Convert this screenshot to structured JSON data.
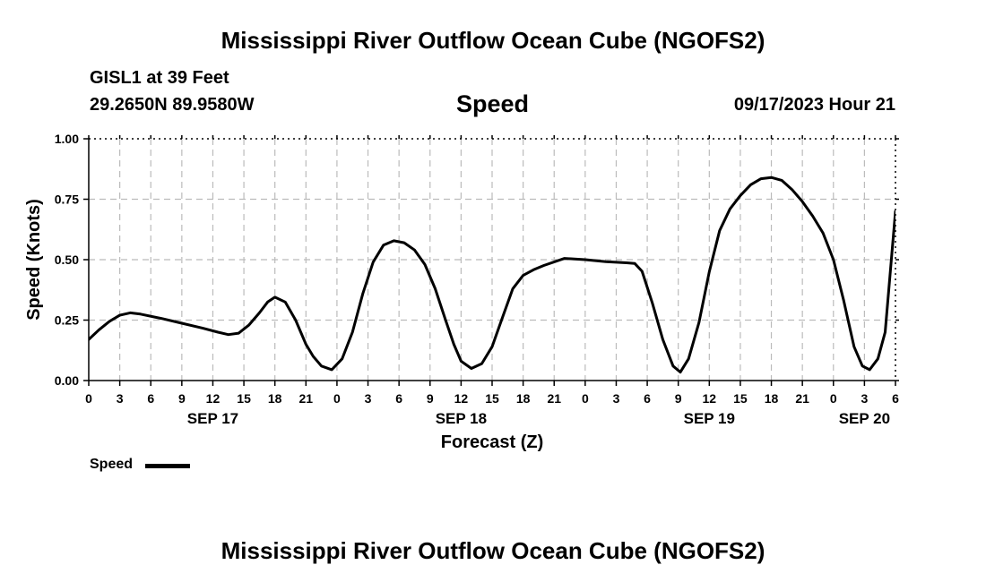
{
  "header": {
    "title_top": "Mississippi River Outflow Ocean Cube (NGOFS2)",
    "station": "GISL1 at 39 Feet",
    "coords": "29.2650N  89.9580W",
    "chart_title": "Speed",
    "datetime": "09/17/2023 Hour 21",
    "title_bottom": "Mississippi River Outflow Ocean Cube (NGOFS2)"
  },
  "legend": {
    "label": "Speed"
  },
  "chart_data": {
    "type": "line",
    "title": "Speed",
    "xlabel": "Forecast (Z)",
    "ylabel": "Speed (Knots)",
    "ylim": [
      0,
      1
    ],
    "xlim": [
      0,
      78
    ],
    "grid": true,
    "y_ticks": [
      "0.00",
      "0.25",
      "0.50",
      "0.75",
      "1.00"
    ],
    "x_ticks": [
      {
        "h": 0,
        "label": "0"
      },
      {
        "h": 3,
        "label": "3"
      },
      {
        "h": 6,
        "label": "6"
      },
      {
        "h": 9,
        "label": "9"
      },
      {
        "h": 12,
        "label": "12"
      },
      {
        "h": 15,
        "label": "15"
      },
      {
        "h": 18,
        "label": "18"
      },
      {
        "h": 21,
        "label": "21"
      },
      {
        "h": 24,
        "label": "0"
      },
      {
        "h": 27,
        "label": "3"
      },
      {
        "h": 30,
        "label": "6"
      },
      {
        "h": 33,
        "label": "9"
      },
      {
        "h": 36,
        "label": "12"
      },
      {
        "h": 39,
        "label": "15"
      },
      {
        "h": 42,
        "label": "18"
      },
      {
        "h": 45,
        "label": "21"
      },
      {
        "h": 48,
        "label": "0"
      },
      {
        "h": 51,
        "label": "3"
      },
      {
        "h": 54,
        "label": "6"
      },
      {
        "h": 57,
        "label": "9"
      },
      {
        "h": 60,
        "label": "12"
      },
      {
        "h": 63,
        "label": "15"
      },
      {
        "h": 66,
        "label": "18"
      },
      {
        "h": 69,
        "label": "21"
      },
      {
        "h": 72,
        "label": "0"
      },
      {
        "h": 75,
        "label": "3"
      },
      {
        "h": 78,
        "label": "6"
      }
    ],
    "date_labels": [
      {
        "h": 12,
        "label": "SEP 17"
      },
      {
        "h": 36,
        "label": "SEP 18"
      },
      {
        "h": 60,
        "label": "SEP 19"
      },
      {
        "h": 75,
        "label": "SEP 20"
      }
    ],
    "series": [
      {
        "name": "Speed",
        "x": [
          0,
          1,
          2,
          3,
          4,
          5,
          7,
          9,
          11,
          12.5,
          13.5,
          14.5,
          15.5,
          16.5,
          17.3,
          18,
          19,
          20,
          21,
          21.7,
          22.5,
          23.5,
          24.5,
          25.5,
          26.5,
          27.5,
          28.5,
          29.5,
          30.5,
          31.5,
          32.5,
          33.5,
          34.5,
          35.3,
          36,
          37,
          38,
          39,
          40,
          41,
          42,
          43,
          44,
          46,
          48,
          50,
          52,
          52.8,
          53.5,
          54.5,
          55.5,
          56.5,
          57.2,
          58,
          59,
          60,
          61,
          62,
          63,
          64,
          65,
          66,
          67,
          68,
          69,
          70,
          71,
          72,
          73,
          74,
          74.8,
          75.5,
          76.3,
          77,
          78
        ],
        "values": [
          0.17,
          0.21,
          0.245,
          0.27,
          0.28,
          0.275,
          0.257,
          0.237,
          0.217,
          0.2,
          0.19,
          0.196,
          0.23,
          0.28,
          0.325,
          0.345,
          0.325,
          0.25,
          0.15,
          0.1,
          0.06,
          0.045,
          0.09,
          0.2,
          0.36,
          0.49,
          0.56,
          0.578,
          0.57,
          0.54,
          0.48,
          0.38,
          0.25,
          0.15,
          0.08,
          0.05,
          0.07,
          0.14,
          0.26,
          0.38,
          0.435,
          0.458,
          0.476,
          0.505,
          0.5,
          0.492,
          0.487,
          0.484,
          0.452,
          0.32,
          0.17,
          0.06,
          0.035,
          0.09,
          0.24,
          0.45,
          0.62,
          0.71,
          0.765,
          0.81,
          0.835,
          0.84,
          0.828,
          0.79,
          0.74,
          0.68,
          0.61,
          0.5,
          0.33,
          0.14,
          0.06,
          0.045,
          0.09,
          0.2,
          0.7
        ]
      }
    ]
  }
}
